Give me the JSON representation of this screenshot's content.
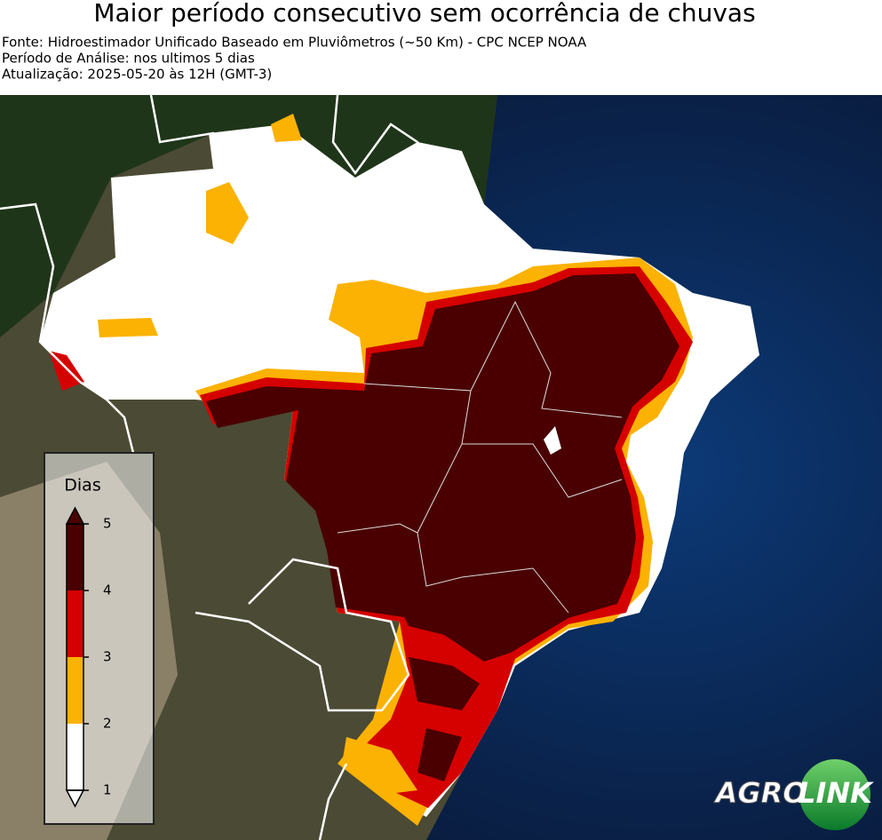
{
  "header": {
    "title": "Maior período consecutivo sem ocorrência de chuvas",
    "lines": [
      "Fonte: Hidroestimador Unificado Baseado em Pluviômetros (~50 Km) - CPC NCEP NOAA",
      "Período de Análise: nos ultimos 5 dias",
      "Atualização: 2025-05-20 às 12H (GMT-3)"
    ]
  },
  "legend": {
    "title": "Dias",
    "range": [
      1,
      5
    ],
    "ticks": [
      1,
      2,
      3,
      4,
      5
    ],
    "colors": [
      "#ffffff",
      "#fbb202",
      "#d50000",
      "#4a0000"
    ]
  },
  "logo": {
    "left": "AGRO",
    "right": "LINK"
  }
}
